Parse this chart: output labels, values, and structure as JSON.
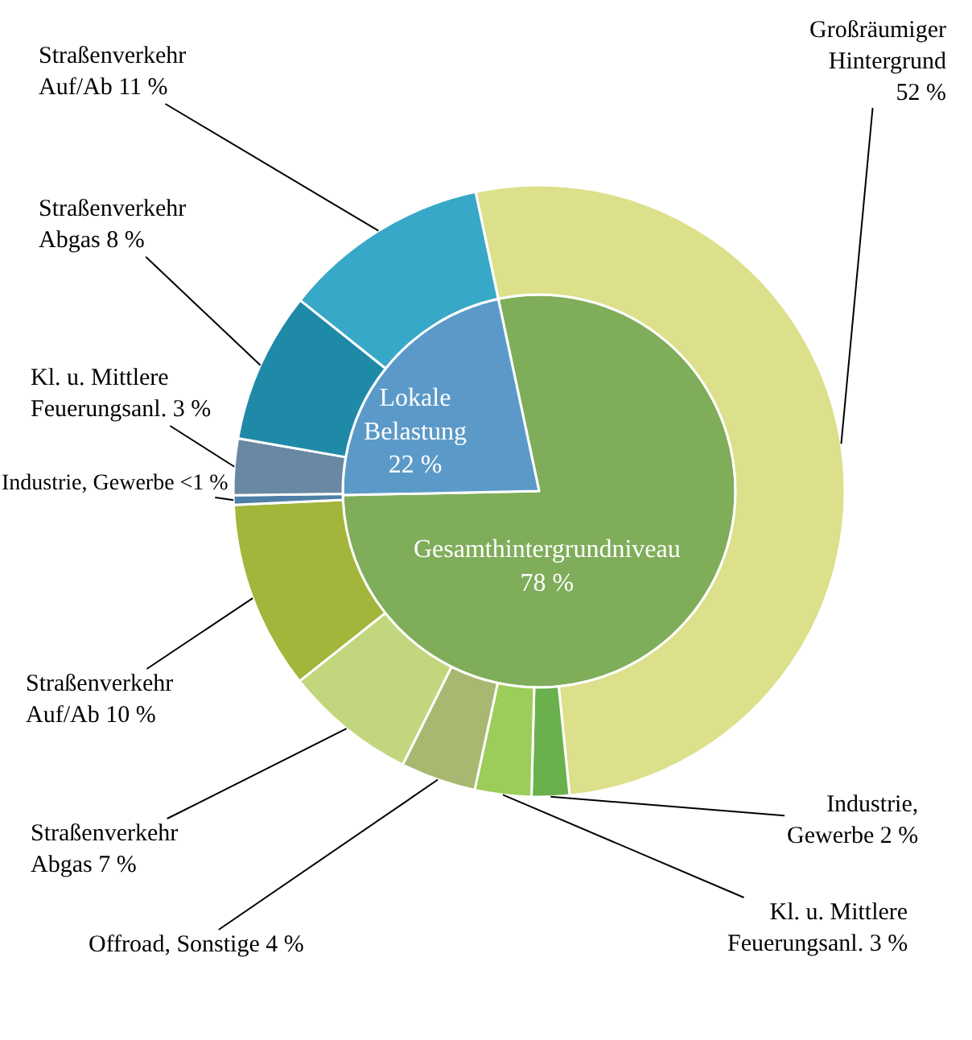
{
  "chart_data": [
    {
      "type": "pie",
      "categories": [
        "Gesamthintergrundniveau",
        "Lokale Belastung"
      ],
      "values": [
        78,
        22
      ],
      "value_labels": [
        "78 %",
        "22 %"
      ],
      "colors": [
        "#7fad5a",
        "#5b9ac8"
      ]
    },
    {
      "type": "donut",
      "categories": [
        "Großräumiger Hintergrund",
        "Industrie, Gewerbe",
        "Kl. u. Mittlere Feuerungsanl.",
        "Offroad, Sonstige",
        "Straßenverkehr Abgas",
        "Straßenverkehr Auf/Ab",
        "Industrie, Gewerbe",
        "Kl. u. Mittlere Feuerungsanl.",
        "Straßenverkehr Abgas",
        "Straßenverkehr Auf/Ab"
      ],
      "values": [
        52,
        2,
        3,
        4,
        7,
        10,
        0.5,
        3,
        8,
        11
      ],
      "value_labels": [
        "52 %",
        "2 %",
        "3 %",
        "4 %",
        "7 %",
        "10 %",
        "<1 %",
        "3 %",
        "8 %",
        "11 %"
      ],
      "colors": [
        "#dce08a",
        "#6ab04c",
        "#9ccc5a",
        "#a8b870",
        "#c2d67e",
        "#a3b53a",
        "#4e7fa6",
        "#6a88a3",
        "#1f8aa8",
        "#38a8c8"
      ]
    }
  ]
}
